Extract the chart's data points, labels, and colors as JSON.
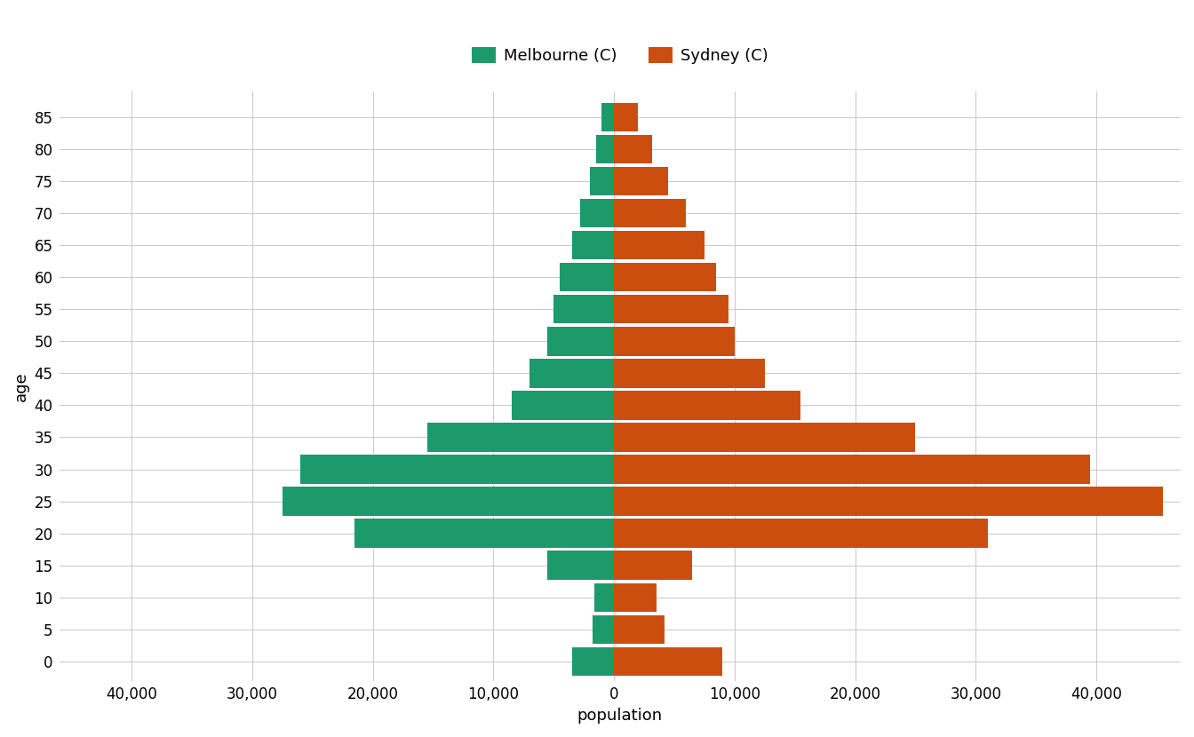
{
  "xlabel": "population",
  "ylabel": "age",
  "melbourne_color": "#1d9a6c",
  "sydney_color": "#cc4e0e",
  "background_color": "#ffffff",
  "plot_bg_color": "#ffffff",
  "grid_color": "#cccccc",
  "legend_labels": [
    "Melbourne (C)",
    "Sydney (C)"
  ],
  "age_groups": [
    0,
    5,
    10,
    15,
    20,
    25,
    30,
    35,
    40,
    45,
    50,
    55,
    60,
    65,
    70,
    75,
    80,
    85
  ],
  "melbourne": [
    3500,
    1800,
    1600,
    5500,
    21500,
    27500,
    26000,
    15500,
    8500,
    7000,
    5500,
    5000,
    4500,
    3500,
    2800,
    2000,
    1500,
    1000
  ],
  "sydney": [
    9000,
    4200,
    3500,
    6500,
    31000,
    45500,
    39500,
    25000,
    15500,
    12500,
    10000,
    9500,
    8500,
    7500,
    6000,
    4500,
    3200,
    2000
  ],
  "xlim": [
    -46000,
    47000
  ],
  "xticks": [
    -40000,
    -30000,
    -20000,
    -10000,
    0,
    10000,
    20000,
    30000,
    40000
  ],
  "xticklabels": [
    "40,000",
    "30,000",
    "20,000",
    "10,000",
    "0",
    "10,000",
    "20,000",
    "30,000",
    "40,000"
  ],
  "bar_height": 4.5,
  "ylim": [
    -3,
    89
  ],
  "figsize": [
    13.44,
    8.3
  ],
  "dpi": 100,
  "tick_fontsize": 12,
  "label_fontsize": 13,
  "legend_fontsize": 13
}
